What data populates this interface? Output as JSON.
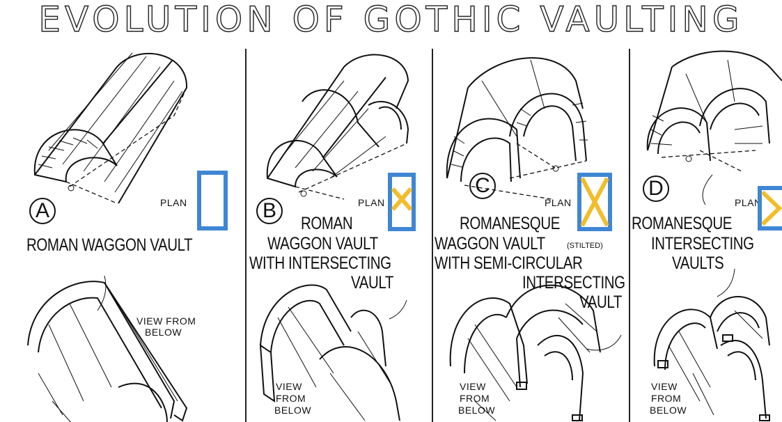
{
  "title": "EVOLUTION OF GOTHIC VAULTING",
  "panels": [
    {
      "letter": "A",
      "caption_lines": [
        "ROMAN WAGGON VAULT"
      ],
      "plan_label": "PLAN",
      "view_label_lines": [
        "VIEW FROM",
        "BELOW"
      ]
    },
    {
      "letter": "B",
      "caption_lines": [
        "ROMAN",
        "WAGGON VAULT",
        "WITH INTERSECTING",
        "VAULT"
      ],
      "plan_label": "PLAN",
      "view_label_lines": [
        "VIEW",
        "FROM",
        "BELOW"
      ]
    },
    {
      "letter": "C",
      "caption_lines": [
        "ROMANESQUE",
        "WAGGON VAULT",
        "(STILTED)",
        "WITH SEMI-CIRCULAR",
        "INTERSECTING",
        "VAULT"
      ],
      "plan_label": "PLAN",
      "view_label_lines": [
        "VIEW",
        "FROM",
        "BELOW"
      ]
    },
    {
      "letter": "D",
      "caption_lines": [
        "ROMANESQUE",
        "INTERSECTING",
        "VAULTS"
      ],
      "plan_label": "PLAN",
      "view_label_lines": [
        "VIEW",
        "FROM",
        "BELOW"
      ]
    }
  ],
  "colors": {
    "plan_outline": "#3f86d4",
    "plan_cross": "#f2bd2a",
    "ink": "#111111"
  }
}
